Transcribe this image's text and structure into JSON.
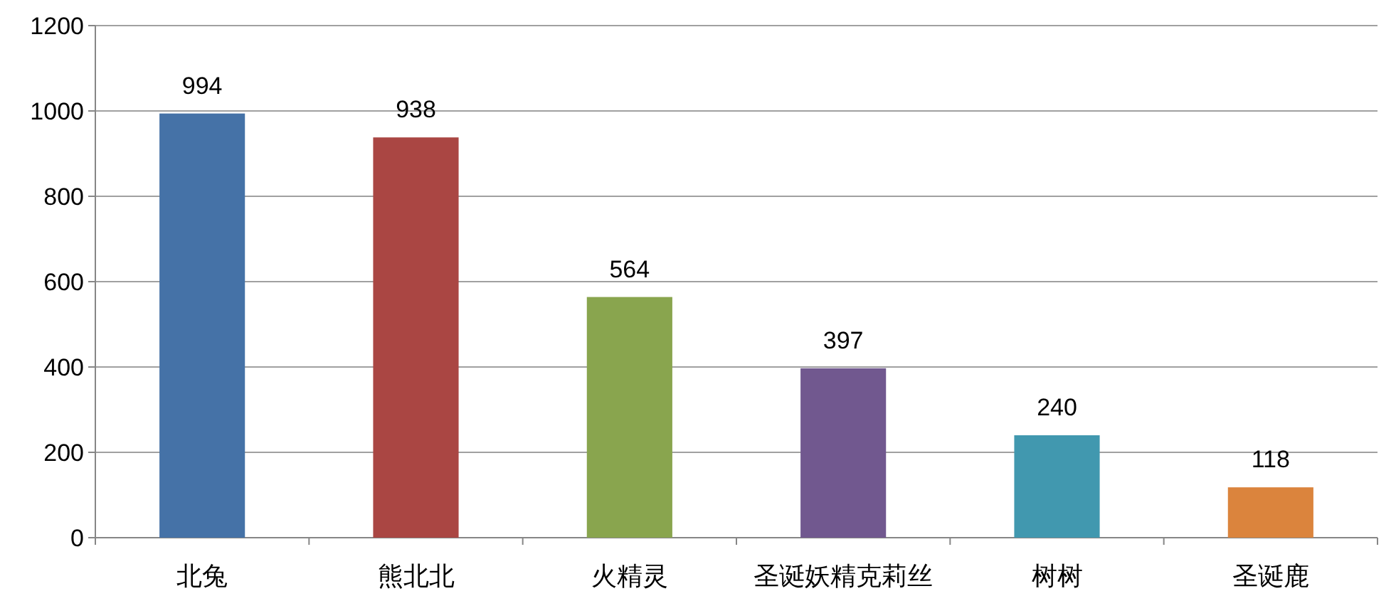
{
  "chart_data": {
    "type": "bar",
    "categories": [
      "北兔",
      "熊北北",
      "火精灵",
      "圣诞妖精克莉丝",
      "树树",
      "圣诞鹿"
    ],
    "values": [
      994,
      938,
      564,
      397,
      240,
      118
    ],
    "colors": [
      "#4572a7",
      "#aa4643",
      "#89a54e",
      "#71588f",
      "#4198af",
      "#db843d"
    ],
    "ylim": [
      0,
      1200
    ],
    "yticks": [
      0,
      200,
      400,
      600,
      800,
      1000,
      1200
    ],
    "grid": "y",
    "data_labels": true
  }
}
